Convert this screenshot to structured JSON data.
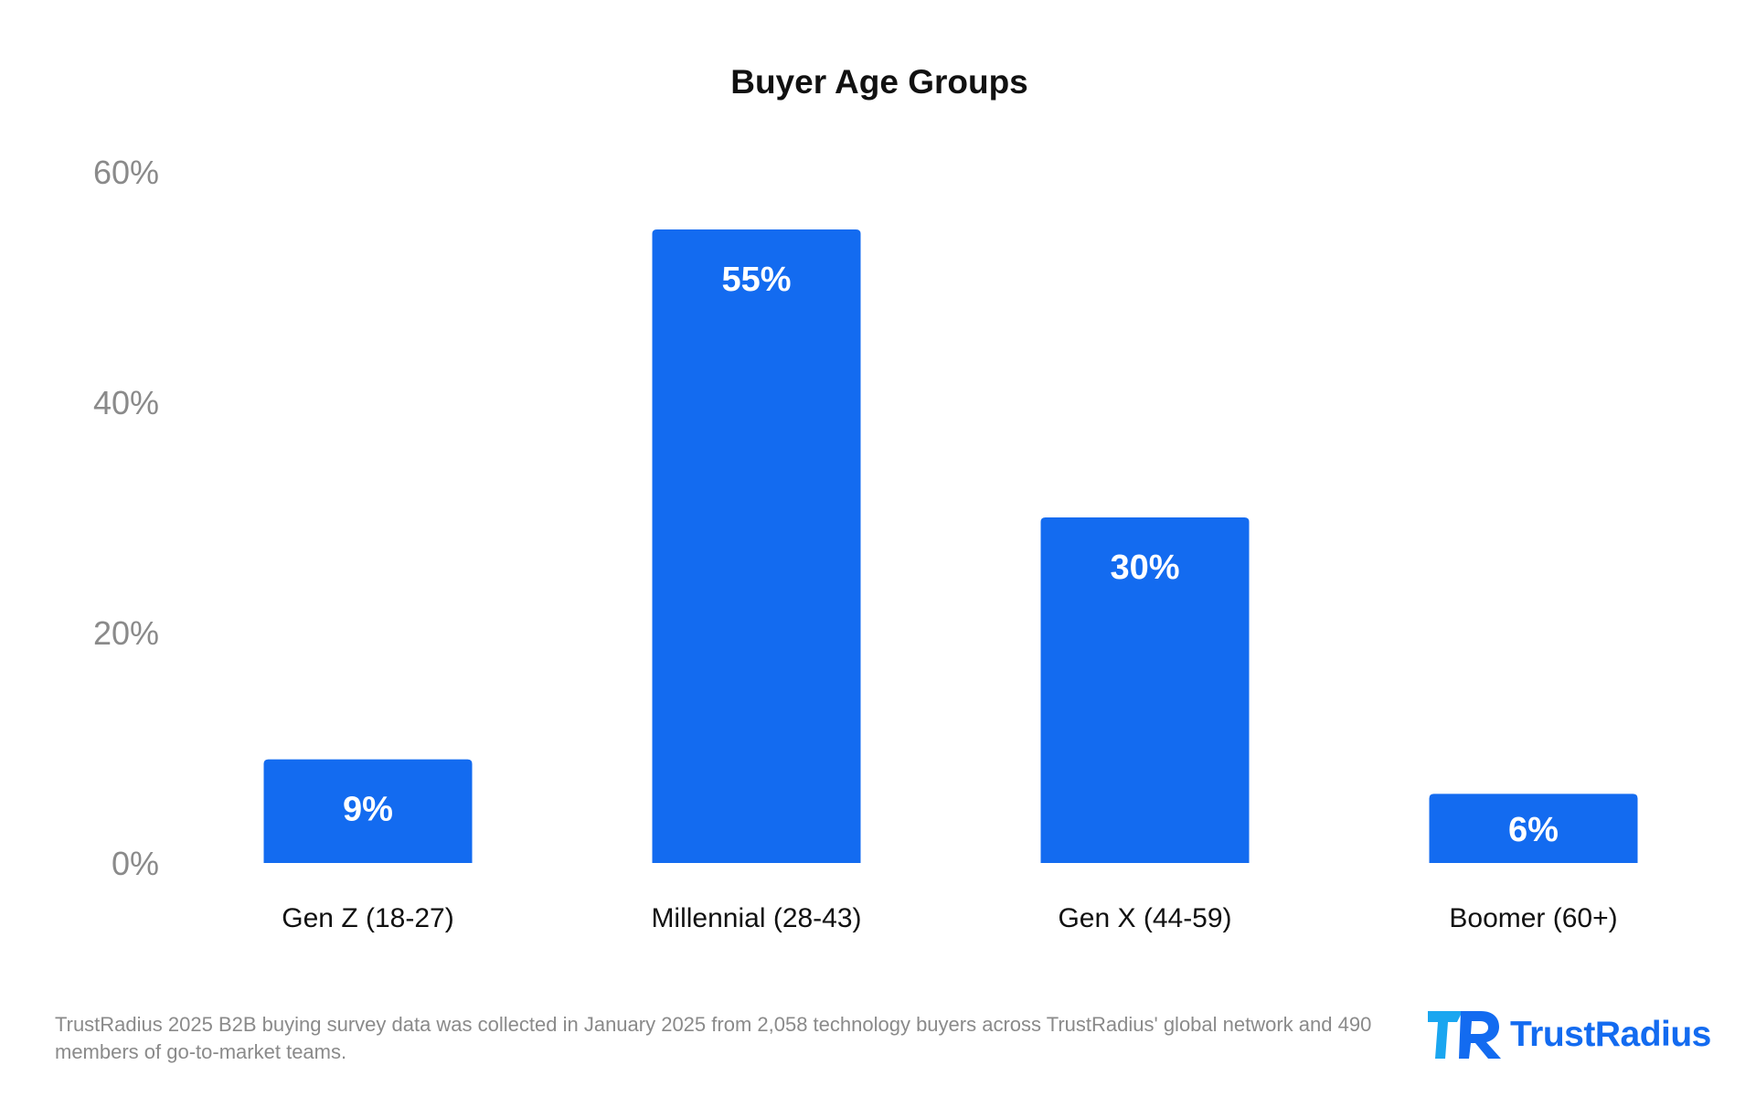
{
  "chart_data": {
    "type": "bar",
    "title": "Buyer Age Groups",
    "categories": [
      "Gen Z (18-27)",
      "Millennial (28-43)",
      "Gen X (44-59)",
      "Boomer (60+)"
    ],
    "values": [
      9,
      55,
      30,
      6
    ],
    "value_labels": [
      "9%",
      "55%",
      "30%",
      "6%"
    ],
    "y_ticks": [
      0,
      20,
      40,
      60
    ],
    "y_tick_labels": [
      "0%",
      "20%",
      "40%",
      "60%"
    ],
    "ylim": [
      0,
      60
    ],
    "grid": false,
    "legend": "none",
    "bar_color": "#136bf0"
  },
  "footnote": "TrustRadius 2025 B2B buying survey data was collected in January 2025 from 2,058 technology buyers across TrustRadius' global network and 490 members of go-to-market teams.",
  "brand": {
    "name": "TrustRadius",
    "color": "#136bf0",
    "logo_icon": "trustradius-logo-icon"
  }
}
